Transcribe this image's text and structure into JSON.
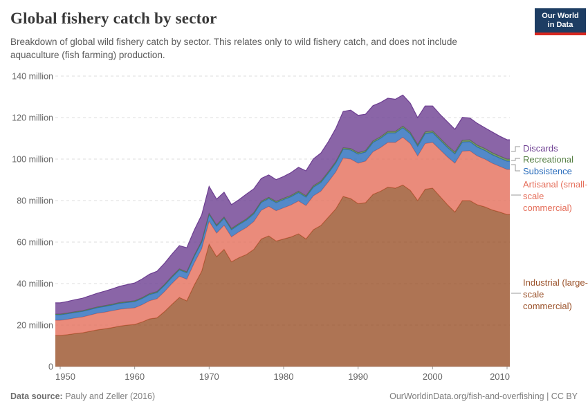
{
  "header": {
    "title": "Global fishery catch by sector",
    "subtitle": "Breakdown of global wild fishery catch by sector. This relates only to wild fishery catch, and does not include aquaculture (fish farming) production.",
    "logo": {
      "line1": "Our World",
      "line2": "in Data",
      "bg_color": "#1d3d63",
      "accent_color": "#d8271f"
    }
  },
  "footer": {
    "source_label": "Data source:",
    "source_value": " Pauly and Zeller (2016)",
    "attribution": "OurWorldinData.org/fish-and-overfishing | CC BY"
  },
  "legend": [
    {
      "label": "Discards",
      "color": "#6D3E91"
    },
    {
      "label": "Recreational",
      "color": "#578145"
    },
    {
      "label": "Subsistence",
      "color": "#286BBB"
    },
    {
      "label": "Artisanal (small-scale commercial)",
      "color": "#E56E5A"
    },
    {
      "label": "Industrial (large-scale commercial)",
      "color": "#9A5129"
    }
  ],
  "chart_data": {
    "type": "area",
    "stacked": true,
    "title": "Global fishery catch by sector",
    "xlabel": "",
    "ylabel": "",
    "xlim": [
      1950,
      2010
    ],
    "ylim": [
      0,
      140
    ],
    "grid": "horizontal-dashed",
    "legend_position": "right",
    "fill_opacity": 0.8,
    "x_ticks": [
      1950,
      1960,
      1970,
      1980,
      1990,
      2000,
      2010
    ],
    "y_ticks": [
      0,
      20,
      40,
      60,
      80,
      100,
      120,
      140
    ],
    "y_tick_labels": [
      "0",
      "20 million",
      "40 million",
      "60 million",
      "80 million",
      "100 million",
      "120 million",
      "140 million"
    ],
    "x": [
      1950,
      1951,
      1952,
      1953,
      1954,
      1955,
      1956,
      1957,
      1958,
      1959,
      1960,
      1961,
      1962,
      1963,
      1964,
      1965,
      1966,
      1967,
      1968,
      1969,
      1970,
      1971,
      1972,
      1973,
      1974,
      1975,
      1976,
      1977,
      1978,
      1979,
      1980,
      1981,
      1982,
      1983,
      1984,
      1985,
      1986,
      1987,
      1988,
      1989,
      1990,
      1991,
      1992,
      1993,
      1994,
      1995,
      1996,
      1997,
      1998,
      1999,
      2000,
      2001,
      2002,
      2003,
      2004,
      2005,
      2006,
      2007,
      2008,
      2009,
      2010
    ],
    "unit_hint": "million tonnes",
    "series": [
      {
        "name": "Industrial (large-scale commercial)",
        "color": "#9A5129",
        "values": [
          15.0,
          15.4,
          15.9,
          16.3,
          17.0,
          17.7,
          18.2,
          18.8,
          19.5,
          20.0,
          20.3,
          21.5,
          23.0,
          23.5,
          26.5,
          30.0,
          33.3,
          31.7,
          39.3,
          46.0,
          59.0,
          53.0,
          56.5,
          50.5,
          52.5,
          54.0,
          56.5,
          61.5,
          63.0,
          60.5,
          61.5,
          62.5,
          64.0,
          61.5,
          66.0,
          68.0,
          72.0,
          76.0,
          82.0,
          81.0,
          78.5,
          79.0,
          83.0,
          84.5,
          86.5,
          86.0,
          87.5,
          85.0,
          80.0,
          85.5,
          86.0,
          82.0,
          78.0,
          74.5,
          80.0,
          80.0,
          78.0,
          77.0,
          75.5,
          74.5,
          73.3
        ]
      },
      {
        "name": "Artisanal (small-scale commercial)",
        "color": "#E56E5A",
        "values": [
          7.3,
          7.4,
          7.5,
          7.6,
          7.8,
          8.0,
          8.0,
          8.1,
          8.1,
          8.0,
          8.0,
          8.3,
          8.7,
          9.2,
          9.6,
          10.0,
          10.2,
          10.4,
          10.6,
          10.8,
          11.0,
          11.3,
          11.6,
          12.0,
          12.4,
          13.0,
          13.4,
          13.8,
          14.2,
          14.6,
          15.0,
          15.4,
          15.8,
          16.1,
          16.3,
          16.5,
          17.0,
          17.8,
          18.5,
          19.0,
          19.5,
          20.0,
          20.5,
          21.0,
          21.5,
          22.0,
          23.0,
          22.5,
          21.5,
          22.0,
          22.0,
          22.5,
          23.0,
          23.5,
          23.8,
          24.0,
          23.5,
          23.0,
          22.5,
          22.0,
          21.7
        ]
      },
      {
        "name": "Subsistence",
        "color": "#286BBB",
        "values": [
          2.7,
          2.7,
          2.7,
          2.7,
          2.7,
          2.7,
          2.8,
          2.8,
          2.9,
          2.9,
          3.0,
          3.0,
          3.0,
          3.0,
          3.0,
          3.0,
          3.1,
          3.1,
          3.2,
          3.2,
          3.3,
          3.4,
          3.4,
          3.5,
          3.5,
          3.6,
          3.7,
          3.8,
          3.8,
          3.9,
          4.0,
          4.0,
          4.1,
          4.1,
          4.2,
          4.2,
          4.2,
          4.3,
          4.3,
          4.4,
          4.4,
          4.4,
          4.5,
          4.5,
          4.6,
          4.6,
          4.6,
          4.7,
          4.7,
          4.8,
          4.8,
          4.7,
          4.6,
          4.5,
          4.4,
          4.4,
          4.3,
          4.2,
          4.1,
          4.0,
          4.0
        ]
      },
      {
        "name": "Recreational",
        "color": "#578145",
        "values": [
          0.3,
          0.31,
          0.32,
          0.33,
          0.34,
          0.35,
          0.36,
          0.37,
          0.38,
          0.39,
          0.4,
          0.41,
          0.42,
          0.43,
          0.44,
          0.45,
          0.46,
          0.47,
          0.48,
          0.49,
          0.5,
          0.51,
          0.52,
          0.53,
          0.54,
          0.55,
          0.56,
          0.57,
          0.58,
          0.59,
          0.6,
          0.61,
          0.62,
          0.63,
          0.64,
          0.65,
          0.66,
          0.67,
          0.68,
          0.69,
          0.7,
          0.71,
          0.72,
          0.73,
          0.74,
          0.75,
          0.76,
          0.77,
          0.78,
          0.79,
          0.8,
          0.82,
          0.84,
          0.86,
          0.88,
          0.9,
          0.92,
          0.94,
          0.96,
          0.98,
          1.0
        ]
      },
      {
        "name": "Discards",
        "color": "#6D3E91",
        "values": [
          5.4,
          5.6,
          5.8,
          6.0,
          6.3,
          6.6,
          7.0,
          7.4,
          7.8,
          8.2,
          8.6,
          9.0,
          9.4,
          9.8,
          10.2,
          10.7,
          11.2,
          11.6,
          12.2,
          12.6,
          13.0,
          12.5,
          12.0,
          11.5,
          11.5,
          12.0,
          11.5,
          11.0,
          10.8,
          10.5,
          10.5,
          11.0,
          11.5,
          12.0,
          13.0,
          13.5,
          14.5,
          16.0,
          17.5,
          18.5,
          18.0,
          17.5,
          17.0,
          16.5,
          16.0,
          15.5,
          15.0,
          14.0,
          13.0,
          12.5,
          12.0,
          11.5,
          11.5,
          11.0,
          11.0,
          10.5,
          10.5,
          10.0,
          10.0,
          9.6,
          9.3
        ]
      }
    ]
  }
}
